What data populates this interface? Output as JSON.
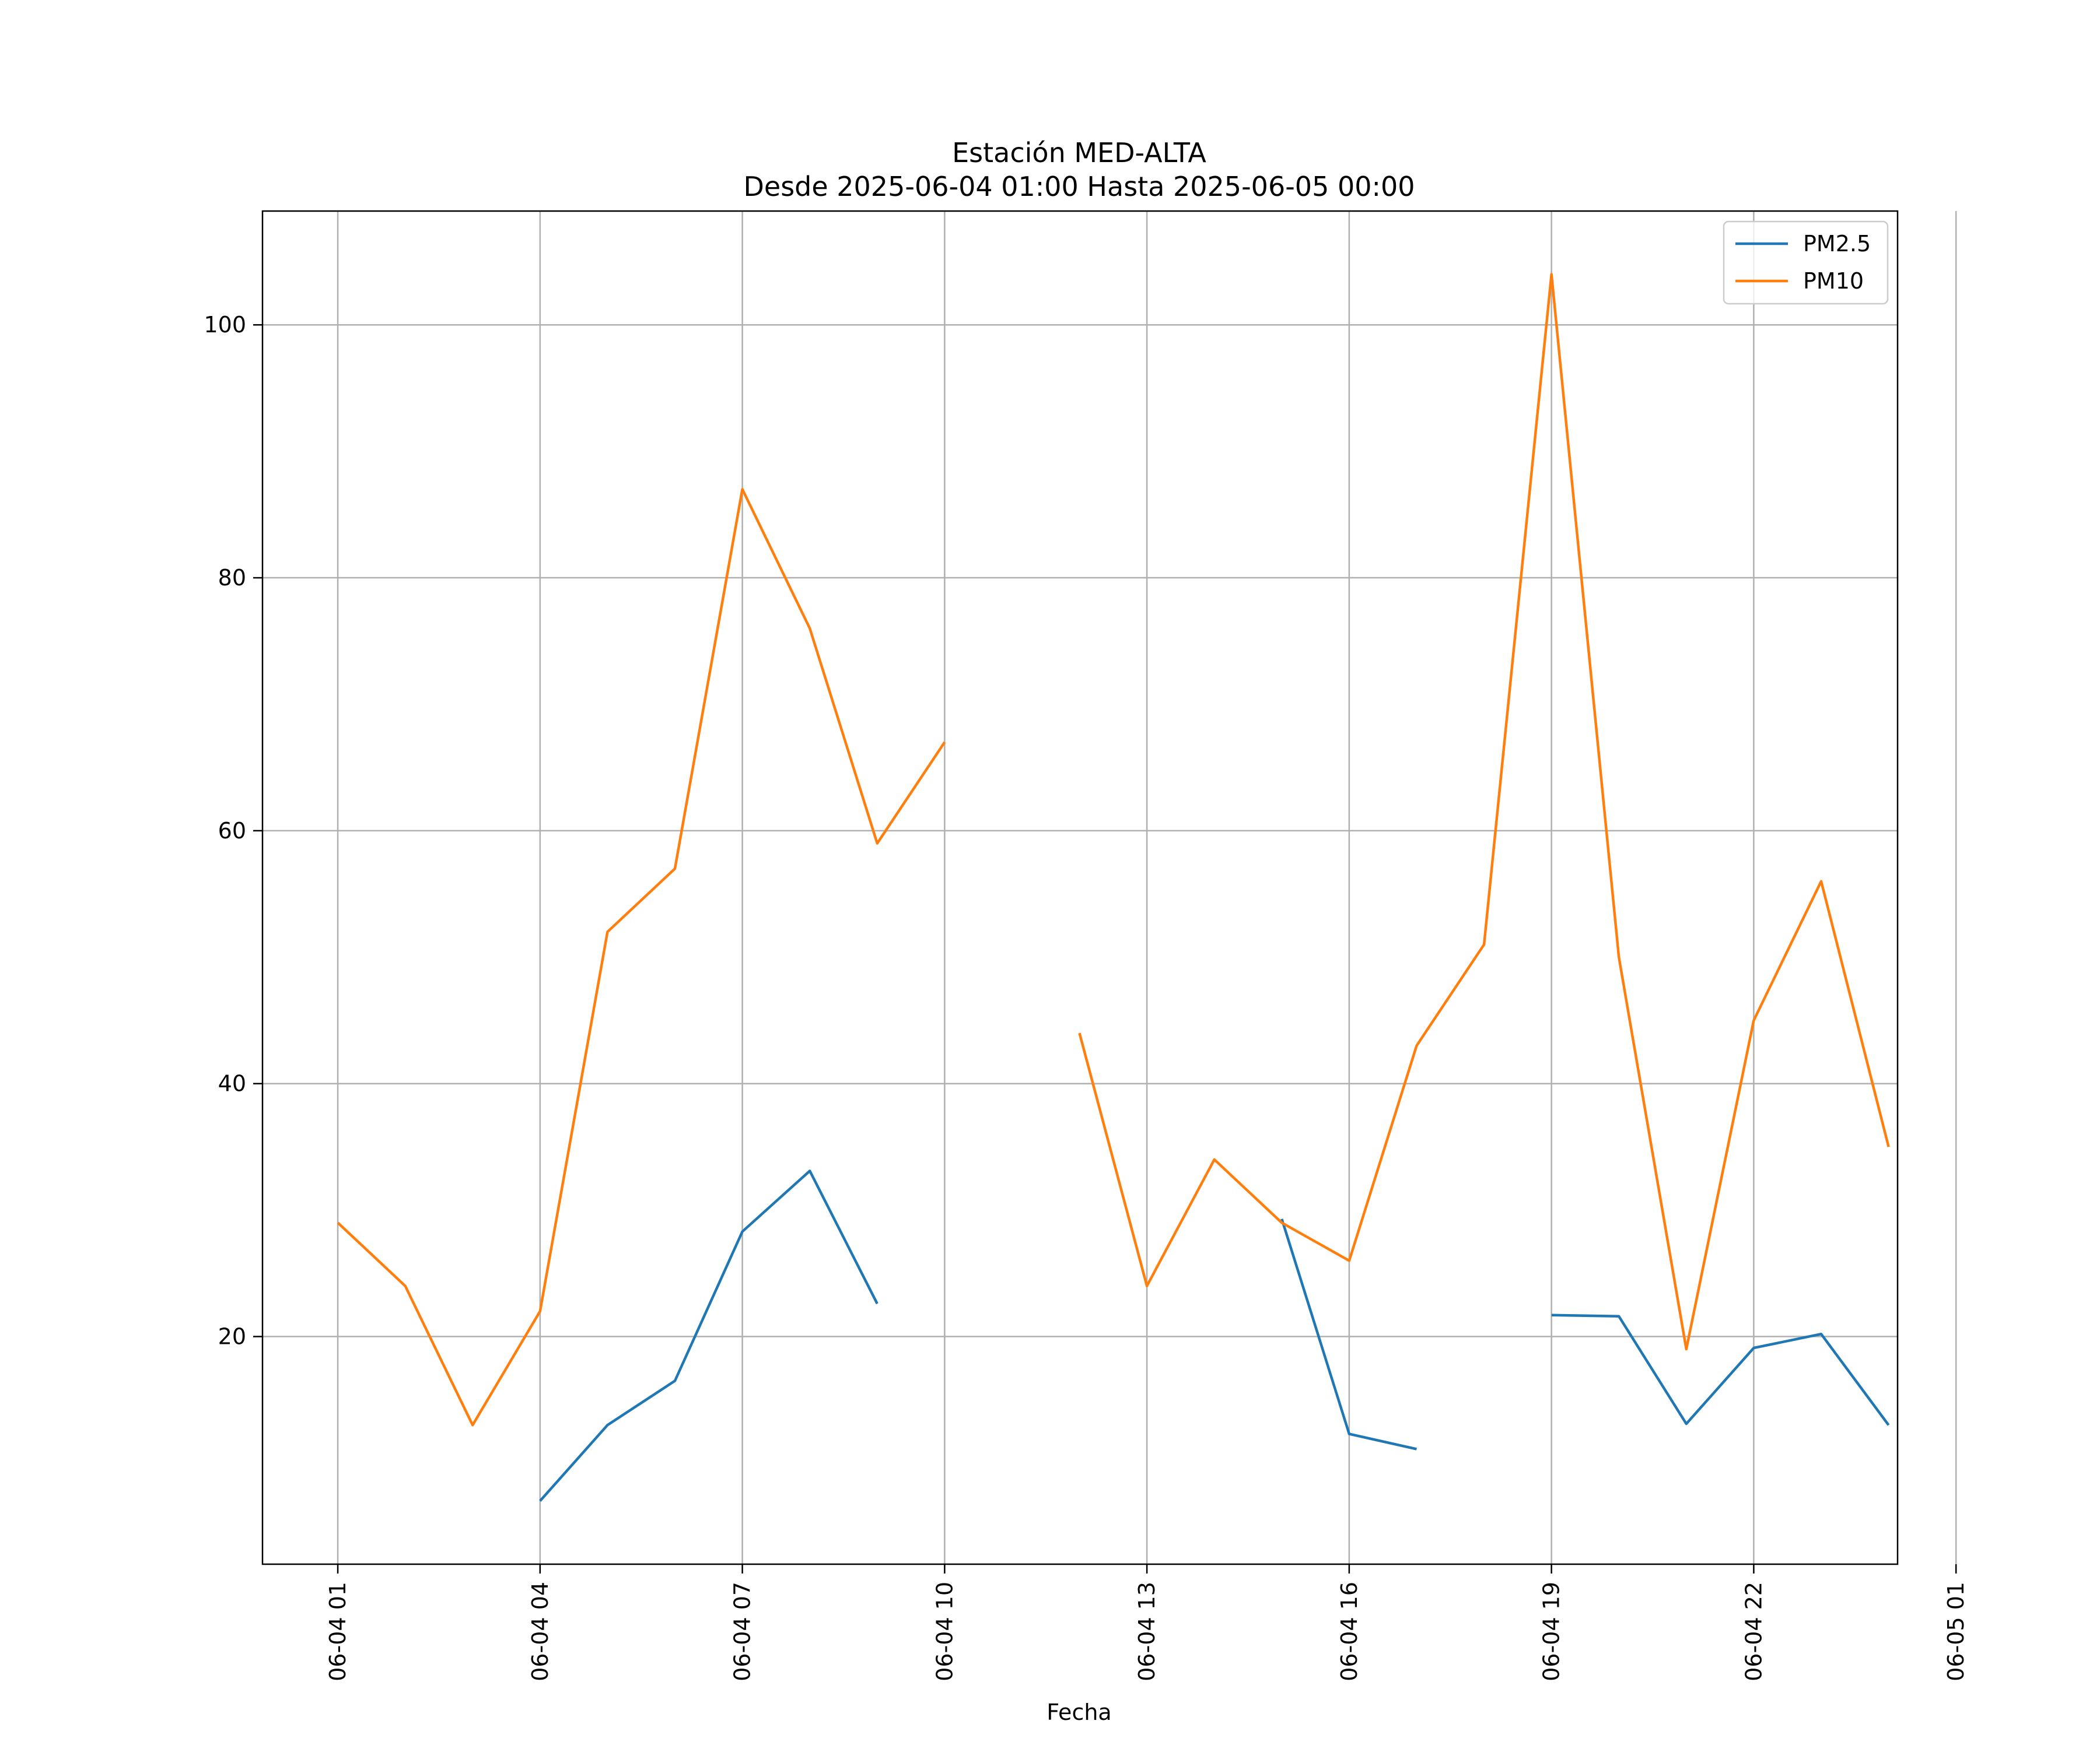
{
  "chart_data": {
    "type": "line",
    "title_line1": "Estación MED-ALTA",
    "title_line2": "Desde 2025-06-04 01:00 Hasta 2025-06-05 00:00",
    "xlabel": "Fecha",
    "ylabel": "",
    "x": [
      "01:00",
      "02:00",
      "03:00",
      "04:00",
      "05:00",
      "06:00",
      "07:00",
      "08:00",
      "09:00",
      "10:00",
      "11:00",
      "12:00",
      "13:00",
      "14:00",
      "15:00",
      "16:00",
      "17:00",
      "18:00",
      "19:00",
      "20:00",
      "21:00",
      "22:00",
      "23:00",
      "00:00"
    ],
    "x_start": "2025-06-04 01:00",
    "x_end": "2025-06-05 00:00",
    "xlim": [
      "2025-06-03 23:53",
      "2025-06-05 00:08"
    ],
    "ylim": [
      2,
      109
    ],
    "x_ticks": [
      {
        "label": "06-04 01",
        "at": "2025-06-04 01:00"
      },
      {
        "label": "06-04 04",
        "at": "2025-06-04 04:00"
      },
      {
        "label": "06-04 07",
        "at": "2025-06-04 07:00"
      },
      {
        "label": "06-04 10",
        "at": "2025-06-04 10:00"
      },
      {
        "label": "06-04 13",
        "at": "2025-06-04 13:00"
      },
      {
        "label": "06-04 16",
        "at": "2025-06-04 16:00"
      },
      {
        "label": "06-04 19",
        "at": "2025-06-04 19:00"
      },
      {
        "label": "06-04 22",
        "at": "2025-06-04 22:00"
      },
      {
        "label": "06-05 01",
        "at": "2025-06-05 01:00"
      }
    ],
    "y_ticks": [
      20,
      40,
      60,
      80,
      100
    ],
    "grid": true,
    "legend_position": "top-right",
    "series": [
      {
        "name": "PM2.5",
        "color": "#1f77b4",
        "values": [
          null,
          null,
          null,
          7,
          13,
          16.5,
          28.3,
          33.1,
          22.6,
          null,
          null,
          null,
          null,
          null,
          29.3,
          12.3,
          11.1,
          null,
          21.7,
          21.6,
          13.1,
          19.1,
          20.2,
          13
        ]
      },
      {
        "name": "PM10",
        "color": "#ff7f0e",
        "values": [
          29,
          24,
          13,
          22,
          52,
          57,
          87,
          76,
          59,
          67,
          null,
          44,
          24,
          34,
          29,
          26,
          43,
          51,
          104,
          50,
          19,
          45,
          56,
          35
        ]
      }
    ]
  }
}
